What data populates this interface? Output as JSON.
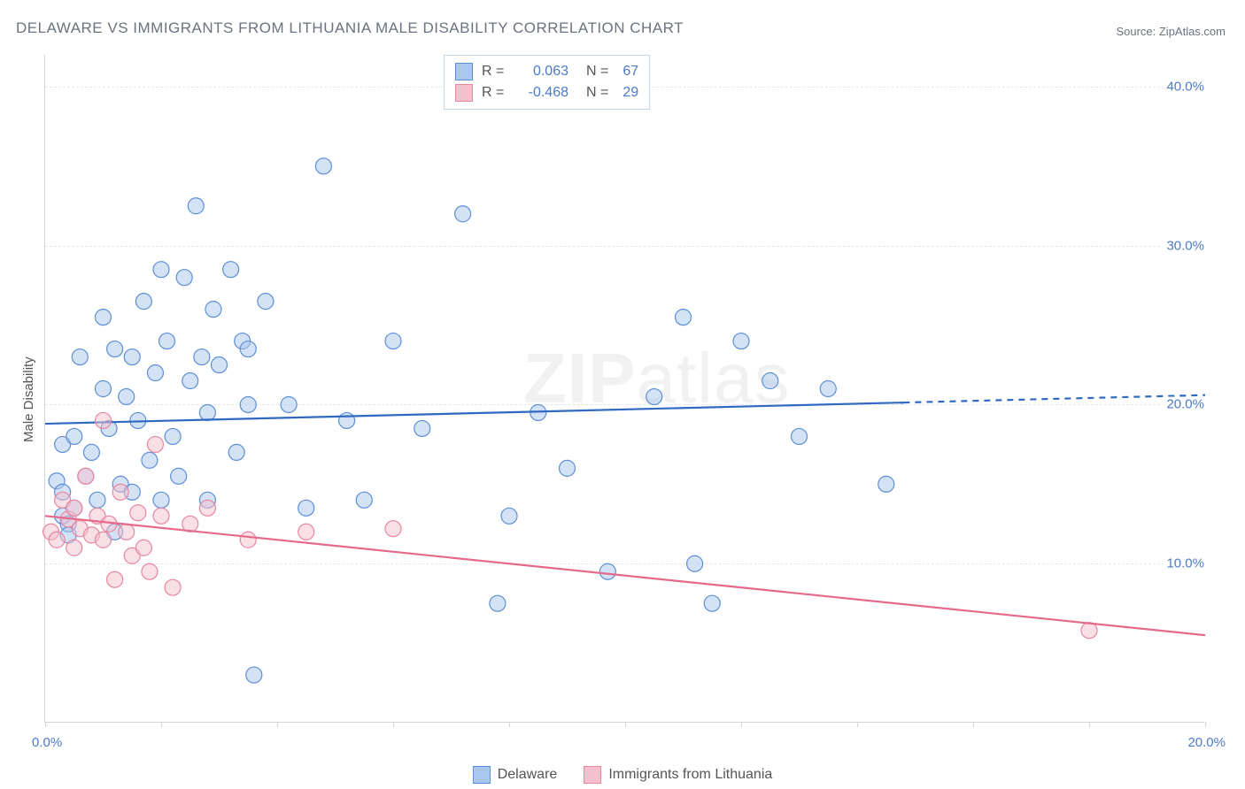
{
  "title": "DELAWARE VS IMMIGRANTS FROM LITHUANIA MALE DISABILITY CORRELATION CHART",
  "source_label": "Source: ",
  "source_name": "ZipAtlas.com",
  "y_axis_label": "Male Disability",
  "watermark_bold": "ZIP",
  "watermark_light": "atlas",
  "chart": {
    "type": "scatter",
    "xlim": [
      0,
      20
    ],
    "ylim": [
      0,
      42
    ],
    "x_ticks": [
      0,
      2,
      4,
      6,
      8,
      10,
      12,
      14,
      16,
      18,
      20
    ],
    "x_tick_labels": {
      "0": "0.0%",
      "20": "20.0%"
    },
    "y_ticks": [
      10,
      20,
      30,
      40
    ],
    "y_tick_labels": {
      "10": "10.0%",
      "20": "20.0%",
      "30": "30.0%",
      "40": "40.0%"
    },
    "background_color": "#ffffff",
    "grid_color": "#e5e7eb",
    "axis_color": "#d1d5db",
    "tick_label_color": "#4a7bc8",
    "point_radius": 9,
    "point_opacity": 0.5,
    "series": [
      {
        "name": "Delaware",
        "color_fill": "#a9c6ec",
        "color_stroke": "#5b8fd6",
        "r_value": "0.063",
        "n_value": "67",
        "trend": {
          "y_at_x0": 18.8,
          "y_at_x20": 20.6,
          "solid_until_x": 14.8,
          "dashed_after": true,
          "stroke": "#2f69c2",
          "width": 2.2
        },
        "points": [
          [
            0.2,
            15.2
          ],
          [
            0.3,
            17.5
          ],
          [
            0.3,
            13.0
          ],
          [
            0.3,
            14.5
          ],
          [
            0.4,
            12.5
          ],
          [
            0.4,
            11.8
          ],
          [
            0.5,
            18.0
          ],
          [
            0.5,
            13.5
          ],
          [
            0.6,
            23.0
          ],
          [
            0.7,
            15.5
          ],
          [
            0.8,
            17.0
          ],
          [
            0.9,
            14.0
          ],
          [
            1.0,
            25.5
          ],
          [
            1.0,
            21.0
          ],
          [
            1.1,
            18.5
          ],
          [
            1.2,
            23.5
          ],
          [
            1.2,
            12.0
          ],
          [
            1.3,
            15.0
          ],
          [
            1.4,
            20.5
          ],
          [
            1.5,
            23.0
          ],
          [
            1.5,
            14.5
          ],
          [
            1.6,
            19.0
          ],
          [
            1.7,
            26.5
          ],
          [
            1.8,
            16.5
          ],
          [
            1.9,
            22.0
          ],
          [
            2.0,
            28.5
          ],
          [
            2.0,
            14.0
          ],
          [
            2.1,
            24.0
          ],
          [
            2.2,
            18.0
          ],
          [
            2.3,
            15.5
          ],
          [
            2.4,
            28.0
          ],
          [
            2.5,
            21.5
          ],
          [
            2.6,
            32.5
          ],
          [
            2.7,
            23.0
          ],
          [
            2.8,
            19.5
          ],
          [
            2.8,
            14.0
          ],
          [
            2.9,
            26.0
          ],
          [
            3.0,
            22.5
          ],
          [
            3.2,
            28.5
          ],
          [
            3.3,
            17.0
          ],
          [
            3.4,
            24.0
          ],
          [
            3.5,
            23.5
          ],
          [
            3.5,
            20.0
          ],
          [
            3.6,
            3.0
          ],
          [
            3.8,
            26.5
          ],
          [
            4.2,
            20.0
          ],
          [
            4.5,
            13.5
          ],
          [
            4.8,
            35.0
          ],
          [
            5.2,
            19.0
          ],
          [
            5.5,
            14.0
          ],
          [
            6.0,
            24.0
          ],
          [
            6.5,
            18.5
          ],
          [
            7.2,
            32.0
          ],
          [
            7.8,
            7.5
          ],
          [
            8.0,
            13.0
          ],
          [
            8.5,
            19.5
          ],
          [
            9.0,
            16.0
          ],
          [
            9.7,
            9.5
          ],
          [
            10.5,
            20.5
          ],
          [
            11.0,
            25.5
          ],
          [
            11.2,
            10.0
          ],
          [
            11.5,
            7.5
          ],
          [
            12.0,
            24.0
          ],
          [
            12.5,
            21.5
          ],
          [
            13.0,
            18.0
          ],
          [
            13.5,
            21.0
          ],
          [
            14.5,
            15.0
          ]
        ]
      },
      {
        "name": "Immigrants from Lithuania",
        "color_fill": "#f4c0cd",
        "color_stroke": "#e886a0",
        "r_value": "-0.468",
        "n_value": "29",
        "trend": {
          "y_at_x0": 13.0,
          "y_at_x20": 5.5,
          "solid_until_x": 20,
          "dashed_after": false,
          "stroke": "#e56a8a",
          "width": 2.2
        },
        "points": [
          [
            0.1,
            12.0
          ],
          [
            0.2,
            11.5
          ],
          [
            0.3,
            14.0
          ],
          [
            0.4,
            12.8
          ],
          [
            0.5,
            11.0
          ],
          [
            0.5,
            13.5
          ],
          [
            0.6,
            12.2
          ],
          [
            0.7,
            15.5
          ],
          [
            0.8,
            11.8
          ],
          [
            0.9,
            13.0
          ],
          [
            1.0,
            19.0
          ],
          [
            1.0,
            11.5
          ],
          [
            1.1,
            12.5
          ],
          [
            1.2,
            9.0
          ],
          [
            1.3,
            14.5
          ],
          [
            1.4,
            12.0
          ],
          [
            1.5,
            10.5
          ],
          [
            1.6,
            13.2
          ],
          [
            1.7,
            11.0
          ],
          [
            1.8,
            9.5
          ],
          [
            1.9,
            17.5
          ],
          [
            2.0,
            13.0
          ],
          [
            2.2,
            8.5
          ],
          [
            2.5,
            12.5
          ],
          [
            2.8,
            13.5
          ],
          [
            3.5,
            11.5
          ],
          [
            4.5,
            12.0
          ],
          [
            6.0,
            12.2
          ],
          [
            18.0,
            5.8
          ]
        ]
      }
    ],
    "legend_bottom": [
      {
        "label": "Delaware",
        "fill": "#a9c6ec",
        "stroke": "#5b8fd6"
      },
      {
        "label": "Immigrants from Lithuania",
        "fill": "#f4c0cd",
        "stroke": "#e886a0"
      }
    ]
  },
  "legend_top_labels": {
    "R": "R =",
    "N": "N ="
  }
}
